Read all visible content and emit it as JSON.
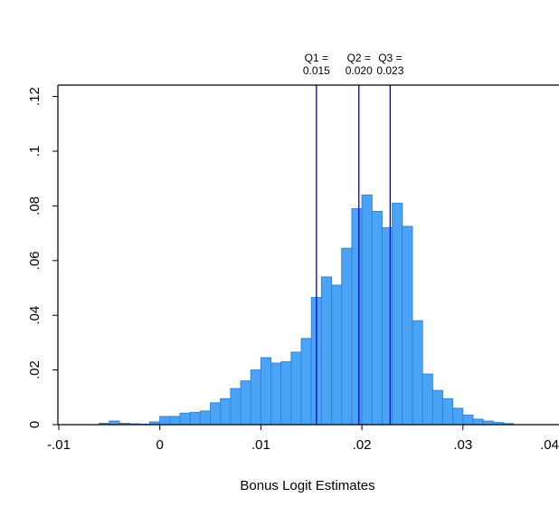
{
  "chart_data": {
    "type": "bar",
    "subtype": "histogram",
    "xlabel": "Bonus Logit Estimates",
    "ylabel": "",
    "xlim": [
      -0.01,
      0.04
    ],
    "ylim": [
      0,
      0.12
    ],
    "x_ticks": [
      {
        "value": -0.01,
        "label": "-.01"
      },
      {
        "value": 0,
        "label": "0"
      },
      {
        "value": 0.01,
        "label": ".01"
      },
      {
        "value": 0.02,
        "label": ".02"
      },
      {
        "value": 0.03,
        "label": ".03"
      },
      {
        "value": 0.04,
        "label": ".04"
      }
    ],
    "y_ticks": [
      {
        "value": 0,
        "label": "0"
      },
      {
        "value": 0.02,
        "label": ".02"
      },
      {
        "value": 0.04,
        "label": ".04"
      },
      {
        "value": 0.06,
        "label": ".06"
      },
      {
        "value": 0.08,
        "label": ".08"
      },
      {
        "value": 0.1,
        "label": ".1"
      },
      {
        "value": 0.12,
        "label": ".12"
      }
    ],
    "grid": false,
    "bar_color": "#4aa3f5",
    "bar_edge_color": "#2f86de",
    "line_color": "#0000cc",
    "bins": [
      {
        "x0": -0.006,
        "x1": -0.005,
        "y": 0.0005
      },
      {
        "x0": -0.005,
        "x1": -0.004,
        "y": 0.0013
      },
      {
        "x0": -0.004,
        "x1": -0.003,
        "y": 0.0005
      },
      {
        "x0": -0.003,
        "x1": -0.002,
        "y": 0.0003
      },
      {
        "x0": -0.002,
        "x1": -0.001,
        "y": 0.0002
      },
      {
        "x0": -0.001,
        "x1": 0.0,
        "y": 0.001
      },
      {
        "x0": 0.0,
        "x1": 0.001,
        "y": 0.003
      },
      {
        "x0": 0.001,
        "x1": 0.002,
        "y": 0.003
      },
      {
        "x0": 0.002,
        "x1": 0.003,
        "y": 0.0042
      },
      {
        "x0": 0.003,
        "x1": 0.004,
        "y": 0.0045
      },
      {
        "x0": 0.004,
        "x1": 0.005,
        "y": 0.005
      },
      {
        "x0": 0.005,
        "x1": 0.006,
        "y": 0.008
      },
      {
        "x0": 0.006,
        "x1": 0.007,
        "y": 0.0095
      },
      {
        "x0": 0.007,
        "x1": 0.008,
        "y": 0.0132
      },
      {
        "x0": 0.008,
        "x1": 0.009,
        "y": 0.016
      },
      {
        "x0": 0.009,
        "x1": 0.01,
        "y": 0.02
      },
      {
        "x0": 0.01,
        "x1": 0.011,
        "y": 0.0245
      },
      {
        "x0": 0.011,
        "x1": 0.012,
        "y": 0.0225
      },
      {
        "x0": 0.012,
        "x1": 0.013,
        "y": 0.023
      },
      {
        "x0": 0.013,
        "x1": 0.014,
        "y": 0.0265
      },
      {
        "x0": 0.014,
        "x1": 0.015,
        "y": 0.0315
      },
      {
        "x0": 0.015,
        "x1": 0.016,
        "y": 0.0465
      },
      {
        "x0": 0.016,
        "x1": 0.017,
        "y": 0.054
      },
      {
        "x0": 0.017,
        "x1": 0.018,
        "y": 0.051
      },
      {
        "x0": 0.018,
        "x1": 0.019,
        "y": 0.0645
      },
      {
        "x0": 0.019,
        "x1": 0.02,
        "y": 0.079
      },
      {
        "x0": 0.02,
        "x1": 0.021,
        "y": 0.084
      },
      {
        "x0": 0.021,
        "x1": 0.022,
        "y": 0.078
      },
      {
        "x0": 0.022,
        "x1": 0.023,
        "y": 0.072
      },
      {
        "x0": 0.023,
        "x1": 0.024,
        "y": 0.081
      },
      {
        "x0": 0.024,
        "x1": 0.025,
        "y": 0.0725
      },
      {
        "x0": 0.025,
        "x1": 0.026,
        "y": 0.038
      },
      {
        "x0": 0.026,
        "x1": 0.027,
        "y": 0.0185
      },
      {
        "x0": 0.027,
        "x1": 0.028,
        "y": 0.0125
      },
      {
        "x0": 0.028,
        "x1": 0.029,
        "y": 0.0095
      },
      {
        "x0": 0.029,
        "x1": 0.03,
        "y": 0.006
      },
      {
        "x0": 0.03,
        "x1": 0.031,
        "y": 0.0035
      },
      {
        "x0": 0.031,
        "x1": 0.032,
        "y": 0.002
      },
      {
        "x0": 0.032,
        "x1": 0.033,
        "y": 0.0013
      },
      {
        "x0": 0.033,
        "x1": 0.034,
        "y": 0.0008
      },
      {
        "x0": 0.034,
        "x1": 0.035,
        "y": 0.0004
      }
    ],
    "reference_lines": [
      {
        "value": 0.0155,
        "label_top": "Q1 =",
        "label_bottom": "0.015"
      },
      {
        "value": 0.0197,
        "label_top": "Q2 =",
        "label_bottom": "0.020"
      },
      {
        "value": 0.0228,
        "label_top": "Q3 =",
        "label_bottom": "0.023"
      }
    ]
  }
}
